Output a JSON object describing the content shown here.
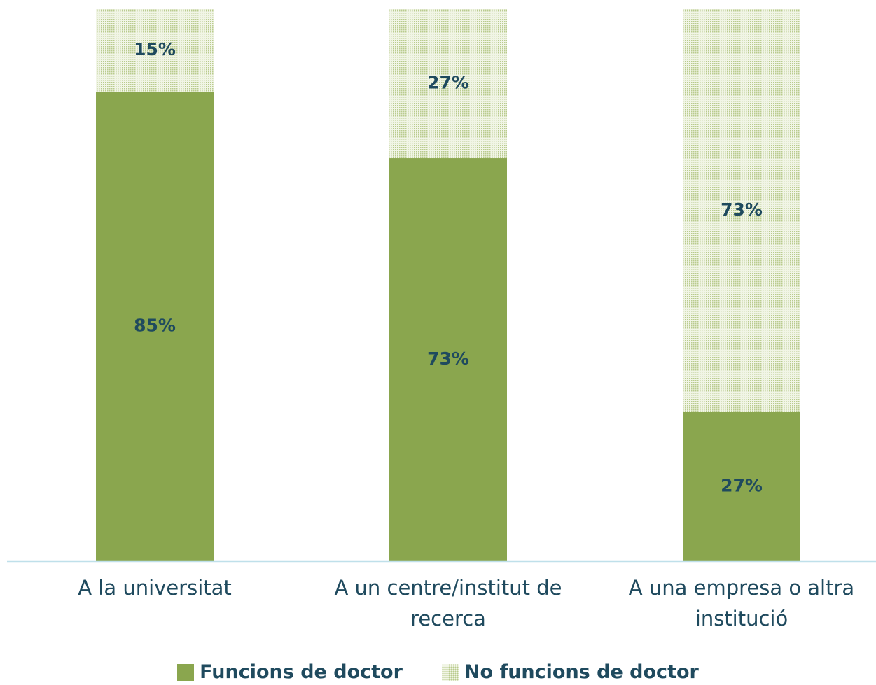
{
  "chart_data": {
    "type": "stacked_bar",
    "stacked": "percent",
    "categories": [
      "A la universitat",
      "A un centre/institut de recerca",
      "A una empresa o altra institució"
    ],
    "series": [
      {
        "name": "Funcions de doctor",
        "color": "#8aa64e",
        "pattern": "solid",
        "values": [
          85,
          73,
          27
        ],
        "value_labels": [
          "85%",
          "73%",
          "27%"
        ]
      },
      {
        "name": "No funcions de doctor",
        "color": "#8aa64e",
        "pattern": "dots",
        "values": [
          15,
          27,
          73
        ],
        "value_labels": [
          "15%",
          "27%",
          "73%"
        ]
      }
    ],
    "legend": "bottom"
  }
}
